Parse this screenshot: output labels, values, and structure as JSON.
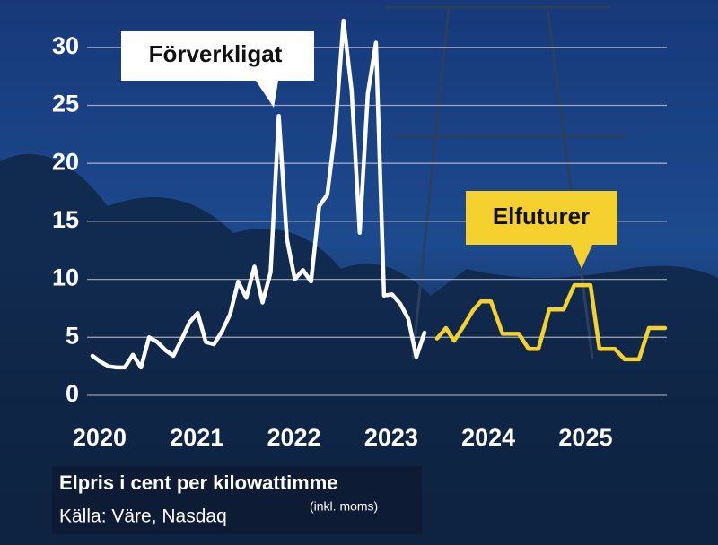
{
  "chart_data": {
    "type": "line",
    "subtitle": "Elpris i cent per kilowattimme",
    "source": "Källa: Väre, Nasdaq",
    "note": "(inkl. moms)",
    "xlim": [
      2019.945,
      2025.91
    ],
    "xticks": [
      2020,
      2021,
      2022,
      2023,
      2024,
      2025
    ],
    "ylim": [
      0,
      33
    ],
    "yticks": [
      0,
      5,
      10,
      15,
      20,
      25,
      30
    ],
    "grid": true,
    "series": [
      {
        "name": "Förverkligat",
        "color": "#ffffff",
        "x": [
          2020.0,
          2020.083,
          2020.167,
          2020.25,
          2020.333,
          2020.417,
          2020.5,
          2020.583,
          2020.667,
          2020.75,
          2020.833,
          2020.917,
          2021.0,
          2021.083,
          2021.167,
          2021.25,
          2021.333,
          2021.417,
          2021.5,
          2021.583,
          2021.667,
          2021.75,
          2021.833,
          2021.917,
          2022.0,
          2022.083,
          2022.167,
          2022.25,
          2022.333,
          2022.417,
          2022.5,
          2022.583,
          2022.667,
          2022.75,
          2022.833,
          2022.917,
          2023.0,
          2023.083,
          2023.167,
          2023.25,
          2023.333,
          2023.417
        ],
        "values": [
          3.4,
          2.9,
          2.5,
          2.4,
          2.4,
          3.5,
          2.4,
          5.0,
          4.6,
          3.9,
          3.4,
          4.8,
          6.3,
          7.1,
          4.6,
          4.4,
          5.5,
          7.0,
          9.8,
          8.4,
          11.1,
          8.0,
          10.6,
          24.1,
          13.5,
          10.0,
          10.8,
          9.8,
          16.3,
          17.3,
          23.0,
          32.3,
          26.3,
          14.0,
          26.0,
          30.4,
          8.6,
          8.7,
          7.9,
          6.6,
          3.3,
          5.4
        ]
      },
      {
        "name": "Elfuturer",
        "color": "#f5d130",
        "x": [
          2023.546,
          2023.638,
          2023.721,
          2023.814,
          2023.915,
          2023.998,
          2024.1,
          2024.22,
          2024.386,
          2024.488,
          2024.589,
          2024.7,
          2024.848,
          2024.958,
          2025.124,
          2025.217,
          2025.374,
          2025.476,
          2025.623,
          2025.725,
          2025.891
        ],
        "values": [
          4.9,
          5.8,
          4.7,
          5.9,
          7.3,
          8.1,
          8.1,
          5.3,
          5.3,
          4.0,
          4.0,
          7.4,
          7.4,
          9.5,
          9.5,
          4.0,
          4.0,
          3.1,
          3.1,
          5.8,
          5.8
        ]
      }
    ]
  }
}
